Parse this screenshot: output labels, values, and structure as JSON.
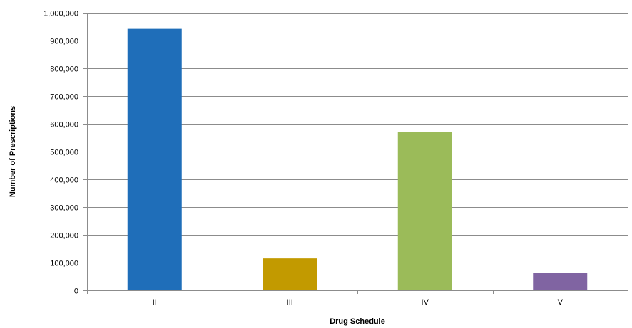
{
  "chart_data": {
    "type": "bar",
    "title": "",
    "xlabel": "Drug Schedule",
    "ylabel": "Number of Prescriptions",
    "categories": [
      "II",
      "III",
      "IV",
      "V"
    ],
    "values": [
      942000,
      115000,
      570000,
      64000
    ],
    "colors": [
      "#1f6eb9",
      "#c29a00",
      "#9bbb59",
      "#8064a2"
    ],
    "ylim": [
      0,
      1000000
    ],
    "yticks": [
      0,
      100000,
      200000,
      300000,
      400000,
      500000,
      600000,
      700000,
      800000,
      900000,
      1000000
    ],
    "ytick_labels": [
      "0",
      "100,000",
      "200,000",
      "300,000",
      "400,000",
      "500,000",
      "600,000",
      "700,000",
      "800,000",
      "900,000",
      "1,000,000"
    ],
    "grid": true,
    "legend": "none"
  }
}
